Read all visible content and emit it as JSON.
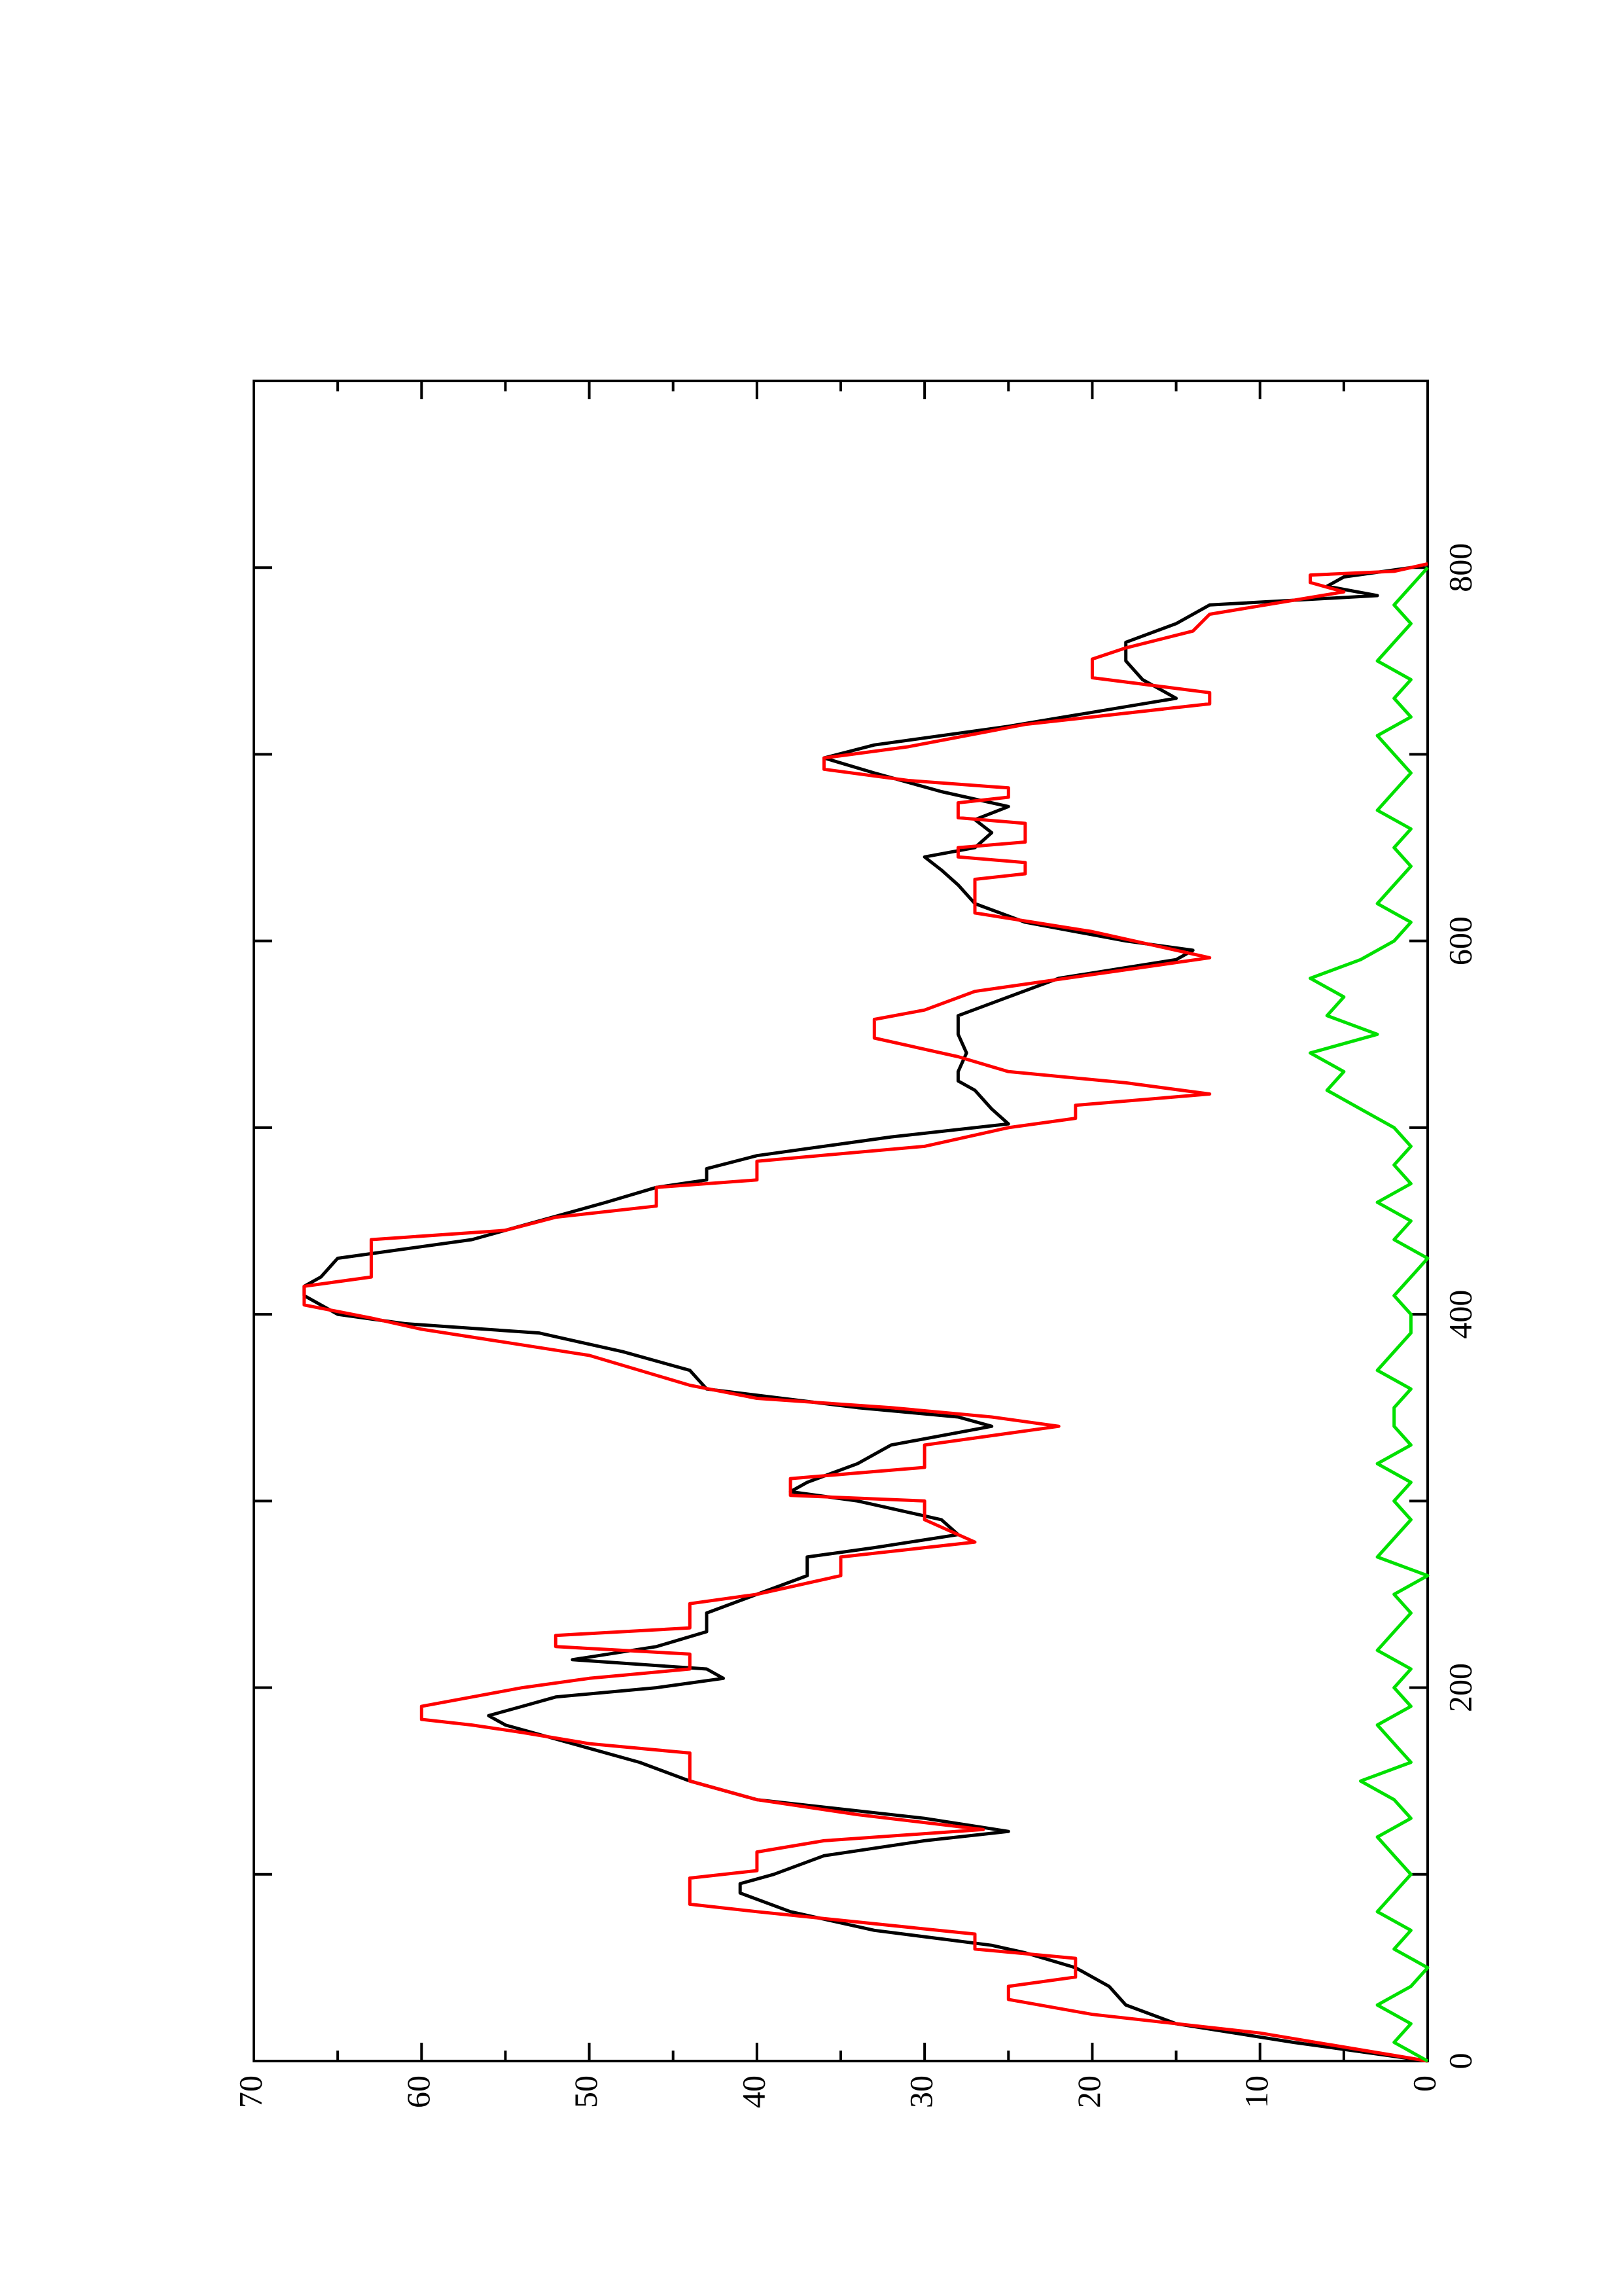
{
  "chart_data": {
    "type": "line",
    "xlim": [
      0,
      900
    ],
    "xticks": [
      0,
      200,
      400,
      600,
      800
    ],
    "xminorticks": [
      100,
      300,
      500,
      700
    ],
    "ylim": [
      0,
      70
    ],
    "yticks": [
      0,
      10,
      20,
      30,
      40,
      50,
      60,
      70
    ],
    "yminorticks": [
      5,
      15,
      25,
      35,
      45,
      55,
      65
    ],
    "series": [
      {
        "color": "#000000",
        "x": [
          0,
          10,
          20,
          30,
          40,
          50,
          58,
          62,
          70,
          80,
          90,
          95,
          100,
          110,
          118,
          123,
          130,
          140,
          150,
          160,
          170,
          180,
          185,
          190,
          195,
          200,
          205,
          210,
          215,
          222,
          230,
          240,
          250,
          260,
          270,
          275,
          282,
          290,
          300,
          305,
          310,
          320,
          330,
          340,
          345,
          350,
          360,
          370,
          380,
          390,
          395,
          400,
          410,
          415,
          420,
          430,
          440,
          450,
          460,
          468,
          472,
          478,
          485,
          495,
          502,
          510,
          520,
          525,
          530,
          540,
          550,
          560,
          570,
          580,
          590,
          595,
          600,
          610,
          620,
          630,
          638,
          645,
          650,
          658,
          665,
          672,
          680,
          690,
          698,
          705,
          715,
          730,
          740,
          750,
          760,
          770,
          780,
          785,
          790,
          795,
          800
        ],
        "values": [
          0,
          8,
          15,
          18,
          19,
          21,
          24,
          26,
          33,
          38,
          41,
          41,
          39,
          36,
          30,
          25,
          30,
          40,
          44,
          47,
          51,
          55,
          56,
          54,
          52,
          46,
          42,
          43,
          51,
          46,
          43,
          43,
          40,
          37,
          37,
          33,
          28,
          29,
          34,
          38,
          37,
          34,
          32,
          26,
          28,
          34,
          43,
          44,
          48,
          53,
          61,
          65,
          67,
          67,
          66,
          65,
          57,
          53,
          49,
          46,
          43,
          43,
          40,
          32,
          25,
          26,
          27,
          28,
          28,
          27.5,
          28,
          28,
          25,
          22,
          15,
          14,
          18,
          24,
          27,
          28,
          29,
          30,
          27,
          26,
          27,
          25,
          29,
          33,
          36,
          33,
          25,
          15,
          17,
          18,
          18,
          15,
          13,
          3,
          6,
          5,
          1
        ]
      },
      {
        "color": "#ff0000",
        "x": [
          0,
          15,
          25,
          33,
          40,
          45,
          55,
          60,
          68,
          80,
          84,
          98,
          102,
          112,
          118,
          124,
          132,
          140,
          150,
          165,
          170,
          176,
          180,
          183,
          190,
          195,
          200,
          205,
          210,
          218,
          222,
          228,
          232,
          245,
          250,
          260,
          270,
          278,
          290,
          300,
          303,
          312,
          318,
          330,
          340,
          345,
          350,
          355,
          362,
          378,
          392,
          398,
          405,
          415,
          420,
          440,
          445,
          452,
          458,
          468,
          472,
          482,
          490,
          500,
          505,
          512,
          518,
          524,
          530,
          538,
          548,
          558,
          563,
          573,
          582,
          591,
          605,
          615,
          633,
          636,
          642,
          645,
          650,
          653,
          663,
          666,
          674,
          677,
          682,
          686,
          692,
          698,
          704,
          716,
          727,
          733,
          741,
          751,
          757,
          766,
          775,
          787,
          792,
          796,
          798,
          802
        ],
        "values": [
          0,
          10,
          20,
          25,
          25,
          21,
          21,
          27,
          27,
          40,
          44,
          44,
          40,
          40,
          36,
          26.5,
          34,
          40,
          44,
          44,
          50,
          54,
          57,
          60,
          60,
          57,
          54,
          50,
          44,
          44,
          52,
          52,
          44,
          44,
          40,
          35,
          35,
          27,
          30,
          30,
          38,
          38,
          30,
          30,
          22,
          26,
          32,
          40,
          44,
          50,
          60,
          63,
          67,
          67,
          63,
          63,
          55,
          52,
          46,
          46,
          40,
          40,
          30,
          25,
          21,
          21,
          13,
          18,
          25,
          28,
          33,
          33,
          30,
          27,
          20,
          13,
          20,
          27,
          27,
          24,
          24,
          28,
          28,
          24,
          24,
          28,
          28,
          25,
          25,
          31,
          36,
          36,
          31,
          24,
          13,
          13,
          20,
          20,
          18,
          14,
          13,
          5,
          7,
          7,
          2,
          0
        ]
      },
      {
        "color": "#00e000",
        "x": [
          0,
          10,
          20,
          30,
          40,
          50,
          60,
          70,
          80,
          90,
          100,
          110,
          120,
          130,
          140,
          150,
          160,
          170,
          180,
          190,
          200,
          210,
          220,
          230,
          240,
          250,
          260,
          270,
          280,
          290,
          300,
          310,
          320,
          330,
          340,
          350,
          360,
          370,
          380,
          390,
          400,
          410,
          420,
          430,
          440,
          450,
          460,
          470,
          480,
          490,
          500,
          510,
          520,
          530,
          540,
          550,
          560,
          570,
          580,
          590,
          600,
          610,
          620,
          630,
          640,
          650,
          660,
          670,
          680,
          690,
          700,
          710,
          720,
          730,
          740,
          750,
          760,
          770,
          780,
          790,
          800
        ],
        "values": [
          0,
          2,
          1,
          3,
          1,
          0,
          2,
          1,
          3,
          2,
          1,
          2,
          3,
          1,
          2,
          4,
          1,
          2,
          3,
          1,
          2,
          1,
          3,
          2,
          1,
          2,
          0,
          3,
          2,
          1,
          2,
          1,
          3,
          1,
          2,
          2,
          1,
          3,
          2,
          1,
          1,
          2,
          1,
          0,
          2,
          1,
          3,
          1,
          2,
          1,
          2,
          4,
          6,
          5,
          7,
          3,
          6,
          5,
          7,
          4,
          2,
          1,
          3,
          2,
          1,
          2,
          1,
          3,
          2,
          1,
          2,
          3,
          1,
          2,
          1,
          3,
          2,
          1,
          2,
          1,
          0
        ]
      }
    ]
  }
}
